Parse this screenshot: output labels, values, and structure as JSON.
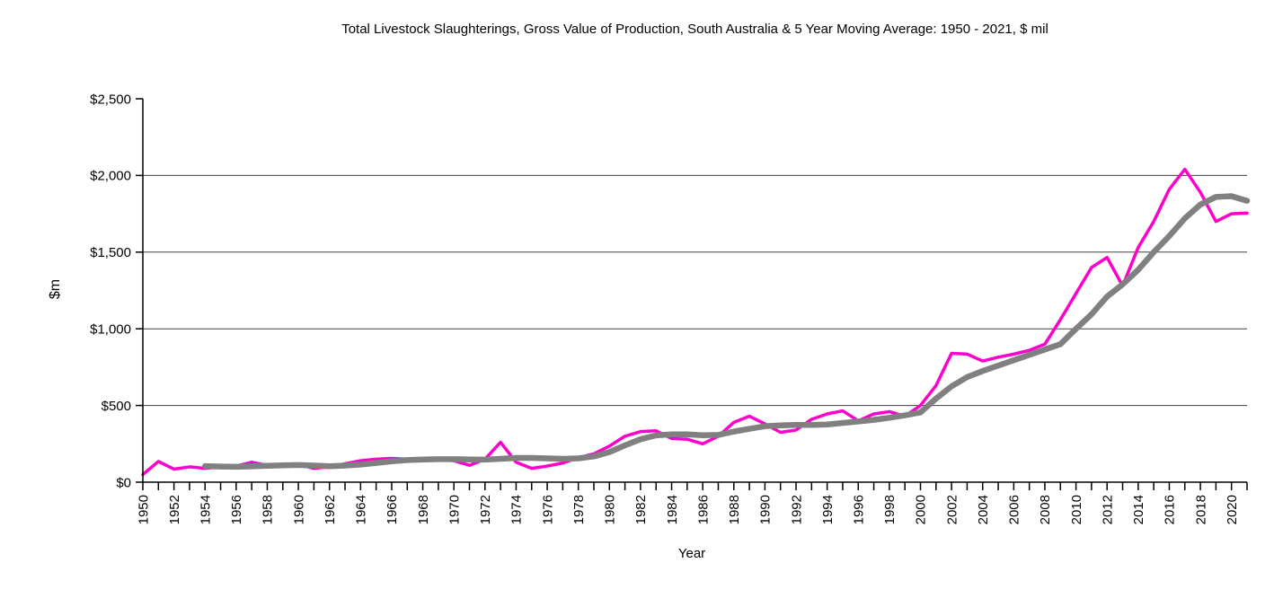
{
  "chart_data": {
    "type": "line",
    "title": "Total Livestock Slaughterings, Gross Value of Production, South Australia & 5 Year Moving Average: 1950 - 2021, $ mil",
    "xlabel": "Year",
    "ylabel": "$m",
    "ylim": [
      0,
      2500
    ],
    "xlim": [
      1950,
      2021
    ],
    "grid": "horizontal",
    "legend_position": "none",
    "y_tick_values": [
      0,
      500,
      1000,
      1500,
      2000,
      2500
    ],
    "y_ticks": [
      "$0",
      "$500",
      "$1,000",
      "$1,500",
      "$2,000",
      "$2,500"
    ],
    "x_tick_label_years": [
      1950,
      1952,
      1954,
      1956,
      1958,
      1960,
      1962,
      1964,
      1966,
      1968,
      1970,
      1972,
      1974,
      1976,
      1978,
      1980,
      1982,
      1984,
      1986,
      1988,
      1990,
      1992,
      1994,
      1996,
      1998,
      2000,
      2002,
      2004,
      2006,
      2008,
      2010,
      2012,
      2014,
      2016,
      2018,
      2020
    ],
    "x": [
      1950,
      1951,
      1952,
      1953,
      1954,
      1955,
      1956,
      1957,
      1958,
      1959,
      1960,
      1961,
      1962,
      1963,
      1964,
      1965,
      1966,
      1967,
      1968,
      1969,
      1970,
      1971,
      1972,
      1973,
      1974,
      1975,
      1976,
      1977,
      1978,
      1979,
      1980,
      1981,
      1982,
      1983,
      1984,
      1985,
      1986,
      1987,
      1988,
      1989,
      1990,
      1991,
      1992,
      1993,
      1994,
      1995,
      1996,
      1997,
      1998,
      1999,
      2000,
      2001,
      2002,
      2003,
      2004,
      2005,
      2006,
      2007,
      2008,
      2009,
      2010,
      2011,
      2012,
      2013,
      2014,
      2015,
      2016,
      2017,
      2018,
      2019,
      2020,
      2021
    ],
    "series": [
      {
        "name": "Total Livestock Slaughterings, Gross Value of Production ($ mil)",
        "color": "#FF00CC",
        "values": [
          50,
          135,
          85,
          100,
          90,
          100,
          105,
          130,
          110,
          112,
          115,
          90,
          100,
          120,
          140,
          150,
          155,
          150,
          145,
          150,
          140,
          110,
          150,
          260,
          130,
          90,
          105,
          125,
          160,
          185,
          235,
          300,
          330,
          335,
          285,
          280,
          250,
          300,
          390,
          430,
          380,
          325,
          340,
          410,
          445,
          465,
          400,
          445,
          460,
          430,
          500,
          630,
          840,
          835,
          790,
          815,
          835,
          860,
          900,
          1060,
          1230,
          1400,
          1465,
          1280,
          1530,
          1700,
          1910,
          2040,
          1890,
          1700,
          1750,
          1755
        ]
      },
      {
        "name": "5 Year Moving Average",
        "color": "#808080",
        "values": [
          null,
          null,
          null,
          null,
          105,
          102,
          100,
          103,
          107,
          110,
          112,
          108,
          104,
          108,
          115,
          125,
          136,
          144,
          148,
          150,
          150,
          148,
          147,
          152,
          158,
          158,
          155,
          152,
          155,
          168,
          196,
          240,
          280,
          305,
          312,
          312,
          306,
          308,
          330,
          348,
          365,
          370,
          373,
          373,
          376,
          386,
          396,
          406,
          420,
          436,
          455,
          545,
          625,
          685,
          725,
          760,
          795,
          830,
          865,
          900,
          1000,
          1095,
          1210,
          1290,
          1385,
          1500,
          1605,
          1720,
          1810,
          1860,
          1865,
          1835
        ]
      }
    ]
  },
  "colors": {
    "annual_series": "#FF00CC",
    "moving_average": "#808080",
    "gridline": "#404040",
    "axis": "#000000",
    "text": "#000000",
    "background": "#FFFFFF"
  }
}
